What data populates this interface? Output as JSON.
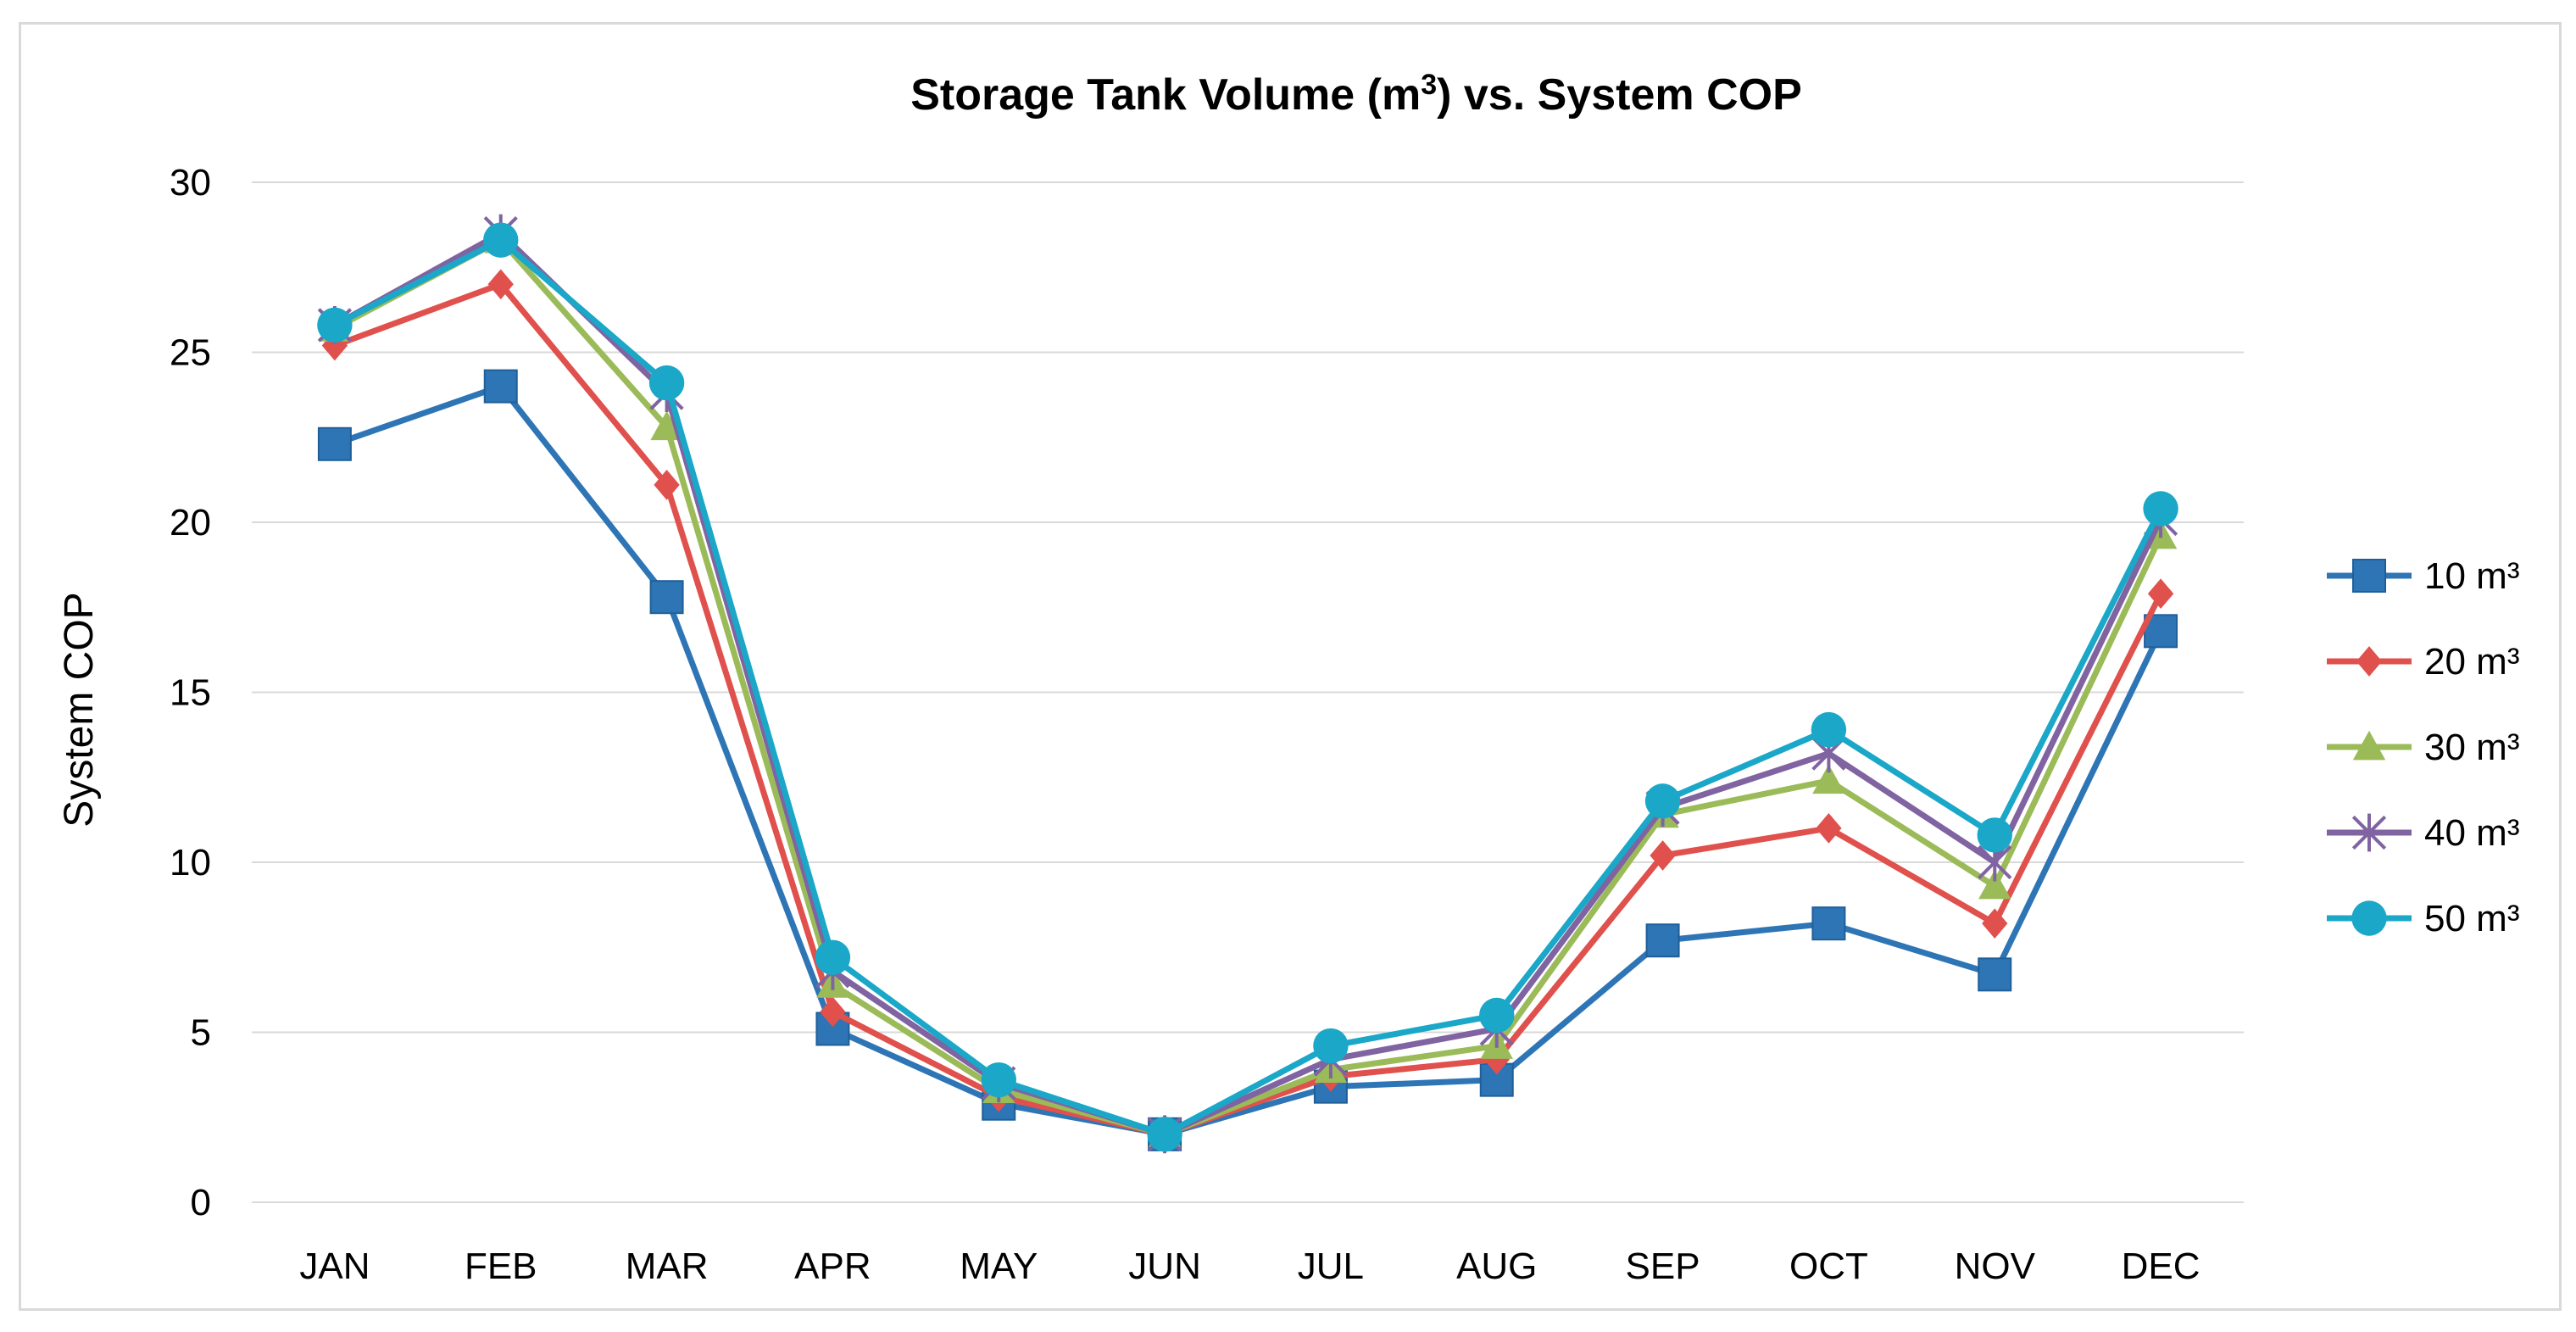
{
  "chart_data": {
    "type": "line",
    "title_main": "Storage Tank Volume (m",
    "title_sup": "3",
    "title_rest": ") vs. System COP",
    "xlabel": "",
    "ylabel": "System COP",
    "ylim": [
      0,
      30
    ],
    "yticks": [
      0,
      5,
      10,
      15,
      20,
      25,
      30
    ],
    "grid": true,
    "legend_position": "right",
    "categories": [
      "JAN",
      "FEB",
      "MAR",
      "APR",
      "MAY",
      "JUN",
      "JUL",
      "AUG",
      "SEP",
      "OCT",
      "NOV",
      "DEC"
    ],
    "series": [
      {
        "name": "10 m³",
        "color": "#2e75b6",
        "marker": "square",
        "values": [
          22.3,
          24.0,
          17.8,
          5.1,
          2.9,
          2.0,
          3.4,
          3.6,
          7.7,
          8.2,
          6.7,
          16.8
        ]
      },
      {
        "name": "20 m³",
        "color": "#e0504c",
        "marker": "diamond",
        "values": [
          25.2,
          27.0,
          21.1,
          5.6,
          3.1,
          2.0,
          3.7,
          4.2,
          10.2,
          11.0,
          8.2,
          17.9
        ]
      },
      {
        "name": "30 m³",
        "color": "#9bbb59",
        "marker": "triangle",
        "values": [
          25.7,
          28.3,
          22.8,
          6.4,
          3.3,
          2.0,
          3.9,
          4.6,
          11.4,
          12.4,
          9.3,
          19.6
        ]
      },
      {
        "name": "40 m³",
        "color": "#8064a2",
        "marker": "star",
        "values": [
          25.8,
          28.5,
          23.8,
          6.8,
          3.5,
          2.0,
          4.2,
          5.1,
          11.6,
          13.2,
          10.0,
          20.1
        ]
      },
      {
        "name": "50 m³",
        "color": "#1aa7c8",
        "marker": "circle",
        "values": [
          25.8,
          28.3,
          24.1,
          7.2,
          3.6,
          2.0,
          4.6,
          5.5,
          11.8,
          13.9,
          10.8,
          20.4
        ]
      }
    ]
  }
}
